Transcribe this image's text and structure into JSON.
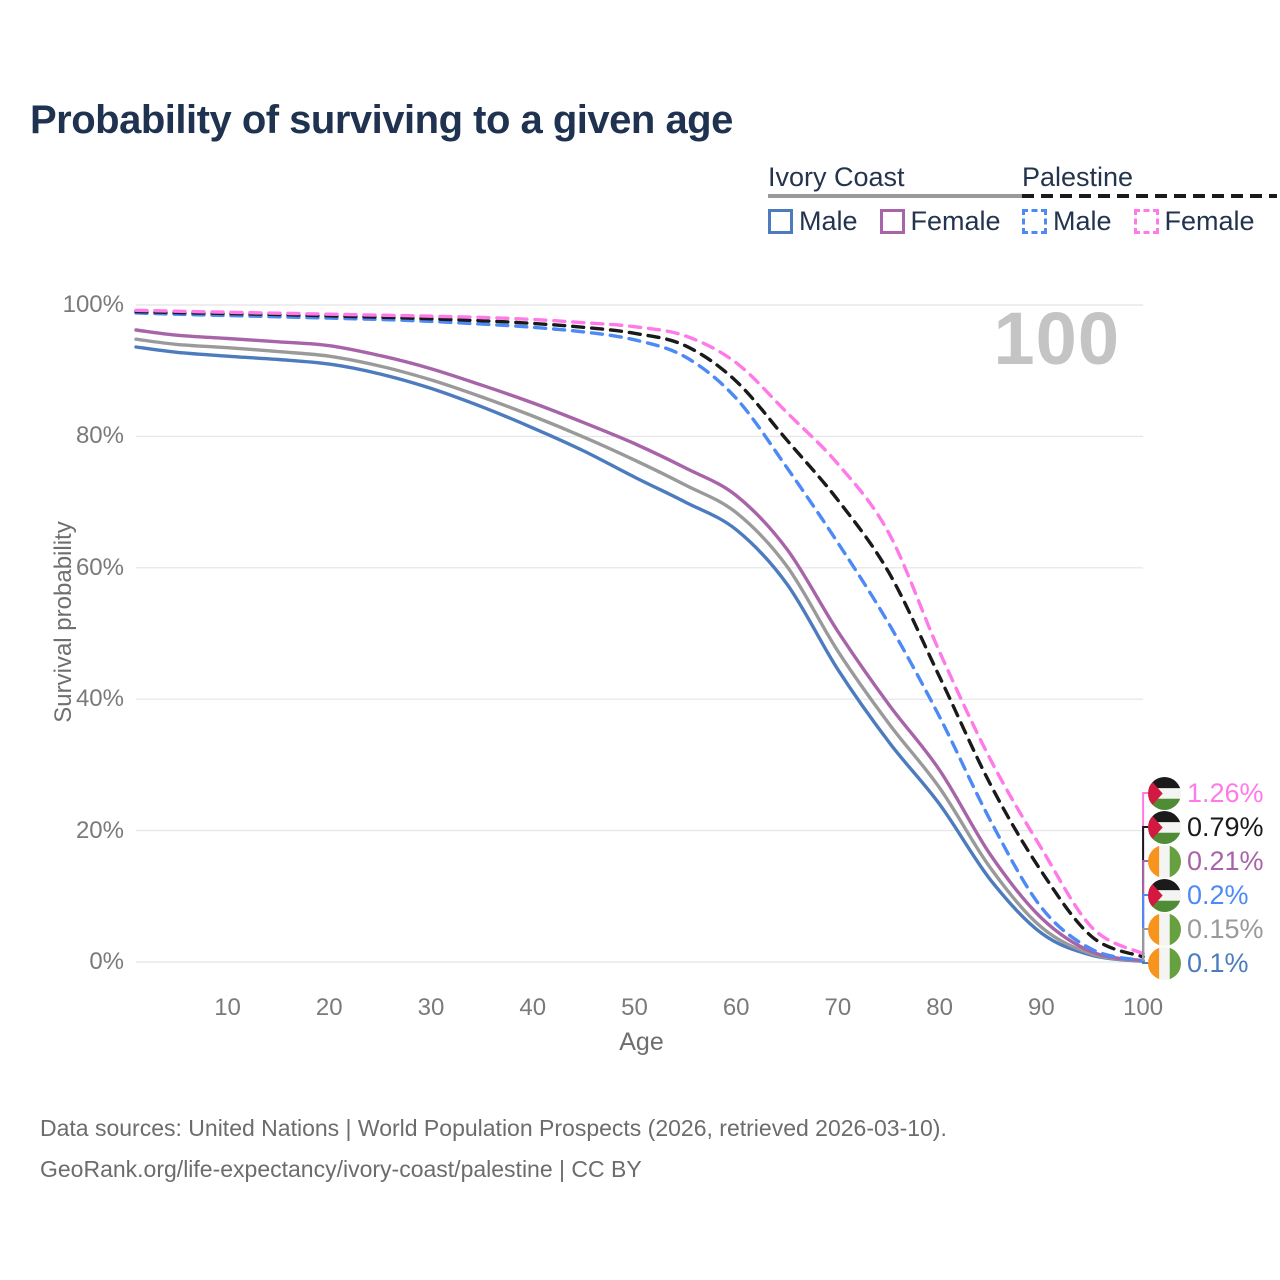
{
  "title": "Probability of surviving to a given age",
  "watermark": "100",
  "legend": {
    "groups": [
      {
        "name": "Ivory Coast",
        "line_style": "solid",
        "underline_color": "#9a9a9a",
        "items": [
          {
            "label": "Male",
            "color": "#4d7cbe"
          },
          {
            "label": "Female",
            "color": "#a864a8"
          }
        ]
      },
      {
        "name": "Palestine",
        "line_style": "dashed",
        "underline_color": "#1a1a1a",
        "items": [
          {
            "label": "Male",
            "color": "#4d8af5"
          },
          {
            "label": "Female",
            "color": "#ff7ae8"
          }
        ]
      }
    ]
  },
  "axes": {
    "y_title": "Survival probability",
    "x_title": "Age",
    "y_ticks": [
      "0%",
      "20%",
      "40%",
      "60%",
      "80%",
      "100%"
    ],
    "x_ticks": [
      10,
      20,
      30,
      40,
      50,
      60,
      70,
      80,
      90,
      100
    ],
    "x_range": [
      1,
      100
    ],
    "y_range": [
      0,
      100
    ],
    "grid": "horizontal-only",
    "gridline_color": "#e8e8e8"
  },
  "chart_data": {
    "type": "line",
    "title": "Probability of surviving to a given age",
    "xlabel": "Age",
    "ylabel": "Survival probability",
    "x": [
      1,
      5,
      10,
      15,
      20,
      25,
      30,
      35,
      40,
      45,
      50,
      55,
      60,
      65,
      70,
      75,
      80,
      85,
      90,
      95,
      100
    ],
    "series": [
      {
        "name": "Ivory Coast Male",
        "color": "#4d7cbe",
        "dash": "solid",
        "values": [
          93.6,
          92.8,
          92.2,
          91.7,
          91.0,
          89.5,
          87.3,
          84.5,
          81.3,
          77.8,
          73.8,
          70.0,
          65.8,
          57.5,
          44.5,
          33.5,
          24.0,
          12.5,
          4.4,
          1.0,
          0.1
        ]
      },
      {
        "name": "Ivory Coast Total",
        "color": "#9a9a9a",
        "dash": "solid",
        "values": [
          94.8,
          94.0,
          93.5,
          92.9,
          92.2,
          90.7,
          88.6,
          86.0,
          83.1,
          79.9,
          76.4,
          72.6,
          68.4,
          60.2,
          47.3,
          36.3,
          26.5,
          14.3,
          5.3,
          1.2,
          0.15
        ]
      },
      {
        "name": "Ivory Coast Female",
        "color": "#a864a8",
        "dash": "solid",
        "values": [
          96.2,
          95.4,
          94.9,
          94.4,
          93.8,
          92.3,
          90.3,
          87.8,
          85.1,
          82.1,
          78.9,
          75.2,
          71.0,
          62.8,
          50.3,
          39.2,
          29.2,
          16.3,
          6.7,
          1.5,
          0.21
        ]
      },
      {
        "name": "Palestine Male",
        "color": "#4d8af5",
        "dash": "dashed",
        "values": [
          98.8,
          98.6,
          98.4,
          98.2,
          98.0,
          97.8,
          97.5,
          97.1,
          96.6,
          95.9,
          94.7,
          92.1,
          85.8,
          75.2,
          63.8,
          51.5,
          37.3,
          21.5,
          8.3,
          1.9,
          0.2
        ]
      },
      {
        "name": "Palestine Total",
        "color": "#1a1a1a",
        "dash": "dashed",
        "values": [
          99.0,
          98.85,
          98.7,
          98.55,
          98.35,
          98.15,
          97.9,
          97.6,
          97.2,
          96.6,
          95.7,
          93.8,
          88.4,
          79.4,
          70.3,
          59.3,
          43.4,
          27.0,
          13.8,
          3.8,
          0.79
        ]
      },
      {
        "name": "Palestine Female",
        "color": "#ff7ae8",
        "dash": "dashed",
        "values": [
          99.2,
          99.05,
          98.9,
          98.75,
          98.6,
          98.45,
          98.3,
          98.1,
          97.8,
          97.3,
          96.7,
          95.3,
          91.2,
          83.6,
          75.8,
          65.3,
          47.2,
          30.8,
          17.3,
          5.2,
          1.26
        ]
      }
    ],
    "end_labels": [
      {
        "text": "1.26%",
        "value": 1.26,
        "color": "#ff7ae8",
        "flag": "palestine",
        "series": "Palestine Female"
      },
      {
        "text": "0.79%",
        "value": 0.79,
        "color": "#1a1a1a",
        "flag": "palestine",
        "series": "Palestine Total"
      },
      {
        "text": "0.21%",
        "value": 0.21,
        "color": "#a864a8",
        "flag": "ivory-coast",
        "series": "Ivory Coast Female"
      },
      {
        "text": "0.2%",
        "value": 0.2,
        "color": "#4d8af5",
        "flag": "palestine",
        "series": "Palestine Male"
      },
      {
        "text": "0.15%",
        "value": 0.15,
        "color": "#9a9a9a",
        "flag": "ivory-coast",
        "series": "Ivory Coast Total"
      },
      {
        "text": "0.1%",
        "value": 0.1,
        "color": "#4d7cbe",
        "flag": "ivory-coast",
        "series": "Ivory Coast Male"
      }
    ]
  },
  "flag_colors": {
    "palestine": {
      "black": "#1b1b1b",
      "white": "#f4f4f2",
      "green": "#4f8c35",
      "red": "#d3193f"
    },
    "ivory_coast": {
      "orange": "#f7941e",
      "white": "#f4f4f2",
      "green": "#67a03e"
    }
  },
  "footer": {
    "line1": "Data sources: United Nations | World Population Prospects (2026, retrieved 2026-03-10).",
    "line2": "GeoRank.org/life-expectancy/ivory-coast/palestine | CC BY"
  }
}
